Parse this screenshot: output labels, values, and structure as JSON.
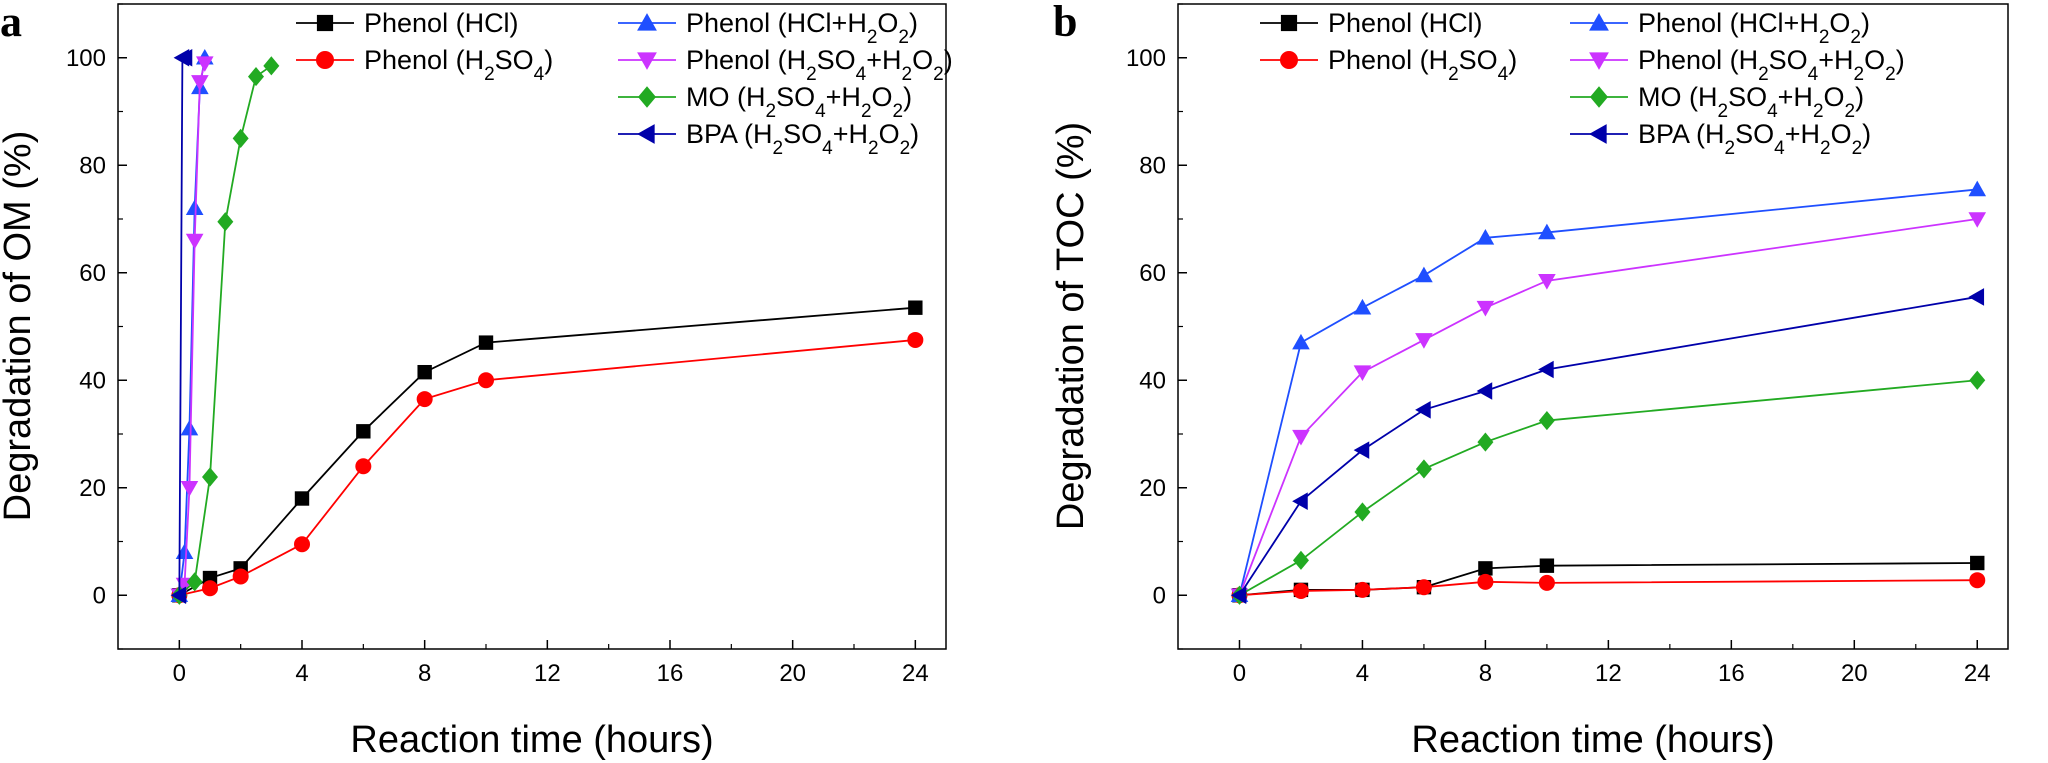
{
  "chart_data": [
    {
      "panel": "a",
      "type": "line",
      "xlabel": "Reaction time (hours)",
      "ylabel": "Degradation of OM (%)",
      "xlim": [
        -2,
        25
      ],
      "ylim": [
        -10,
        110
      ],
      "xticks": [
        0,
        4,
        8,
        12,
        16,
        20,
        24
      ],
      "yticks": [
        0,
        20,
        40,
        60,
        80,
        100
      ],
      "legend_position": "top",
      "series": [
        {
          "name": "Phenol (HCl)",
          "legend_base": "Phenol",
          "legend_detail": "(HCl)",
          "color": "#000000",
          "marker": "square",
          "x": [
            0,
            1,
            2,
            4,
            6,
            8,
            10,
            24
          ],
          "y": [
            0,
            3.2,
            5,
            18,
            30.5,
            41.5,
            47,
            53.5
          ]
        },
        {
          "name": "Phenol (H2SO4)",
          "legend_base": "Phenol",
          "legend_detail": "(H2SO4)",
          "color": "#ff0000",
          "marker": "circle",
          "x": [
            0,
            1,
            2,
            4,
            6,
            8,
            10,
            24
          ],
          "y": [
            0,
            1.3,
            3.5,
            9.5,
            24,
            36.5,
            40,
            47.5
          ]
        },
        {
          "name": "Phenol (HCl+H2O2)",
          "legend_base": "Phenol",
          "legend_detail": "(HCl+H2O2)",
          "color": "#1f4fff",
          "marker": "triangle-up",
          "x": [
            0,
            0.17,
            0.33,
            0.5,
            0.67,
            0.83
          ],
          "y": [
            0,
            8,
            31,
            72,
            94.5,
            100
          ]
        },
        {
          "name": "Phenol (H2SO4+H2O2)",
          "legend_base": "Phenol",
          "legend_detail": "(H2SO4+H2O2)",
          "color": "#cc33ff",
          "marker": "triangle-down",
          "x": [
            0,
            0.17,
            0.33,
            0.5,
            0.67,
            0.83
          ],
          "y": [
            0,
            2,
            20,
            66,
            95.5,
            99
          ]
        },
        {
          "name": "MO (H2SO4+H2O2)",
          "legend_base": "MO",
          "legend_detail": "(H2SO4+H2O2)",
          "color": "#22aa22",
          "marker": "diamond",
          "x": [
            0,
            0.5,
            1,
            1.5,
            2,
            2.5,
            3
          ],
          "y": [
            0,
            2.5,
            22,
            69.5,
            85,
            96.5,
            98.5
          ]
        },
        {
          "name": "BPA (H2SO4+H2O2)",
          "legend_base": "BPA",
          "legend_detail": "(H2SO4+H2O2)",
          "color": "#0000aa",
          "marker": "triangle-left",
          "x": [
            0,
            0.1,
            0.2
          ],
          "y": [
            0,
            100,
            100
          ]
        }
      ]
    },
    {
      "panel": "b",
      "type": "line",
      "xlabel": "Reaction time (hours)",
      "ylabel": "Degradation of TOC (%)",
      "xlim": [
        -2,
        25
      ],
      "ylim": [
        -10,
        110
      ],
      "xticks": [
        0,
        4,
        8,
        12,
        16,
        20,
        24
      ],
      "yticks": [
        0,
        20,
        40,
        60,
        80,
        100
      ],
      "legend_position": "top",
      "series": [
        {
          "name": "Phenol (HCl)",
          "legend_base": "Phenol",
          "legend_detail": "(HCl)",
          "color": "#000000",
          "marker": "square",
          "x": [
            0,
            2,
            4,
            6,
            8,
            10,
            24
          ],
          "y": [
            0,
            1,
            1,
            1.5,
            5,
            5.5,
            6
          ]
        },
        {
          "name": "Phenol (H2SO4)",
          "legend_base": "Phenol",
          "legend_detail": "(H2SO4)",
          "color": "#ff0000",
          "marker": "circle",
          "x": [
            0,
            2,
            4,
            6,
            8,
            10,
            24
          ],
          "y": [
            0,
            0.8,
            1,
            1.5,
            2.5,
            2.3,
            2.8
          ]
        },
        {
          "name": "Phenol (HCl+H2O2)",
          "legend_base": "Phenol",
          "legend_detail": "(HCl+H2O2)",
          "color": "#1f4fff",
          "marker": "triangle-up",
          "x": [
            0,
            2,
            4,
            6,
            8,
            10,
            24
          ],
          "y": [
            0,
            47,
            53.5,
            59.5,
            66.5,
            67.5,
            75.5
          ]
        },
        {
          "name": "Phenol (H2SO4+H2O2)",
          "legend_base": "Phenol",
          "legend_detail": "(H2SO4+H2O2)",
          "color": "#cc33ff",
          "marker": "triangle-down",
          "x": [
            0,
            2,
            4,
            6,
            8,
            10,
            24
          ],
          "y": [
            0,
            29.5,
            41.5,
            47.5,
            53.5,
            58.5,
            70
          ]
        },
        {
          "name": "MO (H2SO4+H2O2)",
          "legend_base": "MO",
          "legend_detail": "(H2SO4+H2O2)",
          "color": "#22aa22",
          "marker": "diamond",
          "x": [
            0,
            2,
            4,
            6,
            8,
            10,
            24
          ],
          "y": [
            0,
            6.5,
            15.5,
            23.5,
            28.5,
            32.5,
            40
          ]
        },
        {
          "name": "BPA (H2SO4+H2O2)",
          "legend_base": "BPA",
          "legend_detail": "(H2SO4+H2O2)",
          "color": "#0000aa",
          "marker": "triangle-left",
          "x": [
            0,
            2,
            4,
            6,
            8,
            10,
            24
          ],
          "y": [
            0,
            17.5,
            27,
            34.5,
            38,
            42,
            55.5
          ]
        }
      ]
    }
  ]
}
